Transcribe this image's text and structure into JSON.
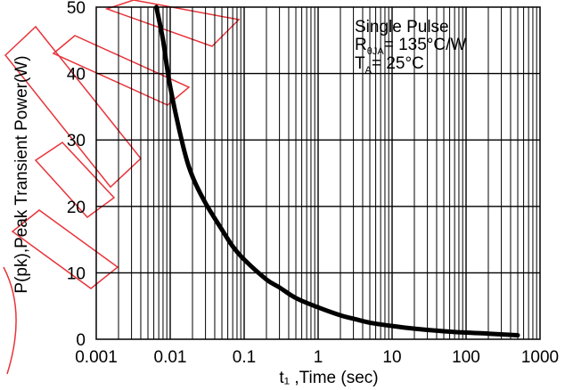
{
  "chart_data": {
    "type": "line",
    "x_scale": "log",
    "xlim": [
      0.001,
      1000
    ],
    "ylim": [
      0,
      50
    ],
    "grid": true,
    "xlabel": "t₁ ,Time (sec)",
    "ylabel": "P(pk),Peak Transient Power(W)",
    "x_tick_labels": [
      "0.001",
      "0.01",
      "0.1",
      "1",
      "10",
      "100",
      "1000"
    ],
    "y_tick_labels": [
      "0",
      "10",
      "20",
      "30",
      "40",
      "50"
    ],
    "annotations": {
      "line1": "Single Pulse",
      "line2_main": "R",
      "line2_sub": "θJA",
      "line2_rest": "= 135°C/W",
      "line3_main": "T",
      "line3_sub": "A",
      "line3_rest": "= 25°C"
    },
    "series": [
      {
        "color": "#000000",
        "x": [
          0.0065,
          0.008,
          0.01,
          0.015,
          0.02,
          0.03,
          0.05,
          0.07,
          0.1,
          0.2,
          0.3,
          0.5,
          1,
          2,
          3,
          5,
          10,
          20,
          50,
          100,
          200,
          500
        ],
        "y": [
          50,
          45,
          38,
          29,
          24.5,
          20.5,
          16.5,
          14,
          12,
          9,
          7.8,
          6.2,
          4.8,
          3.6,
          3.1,
          2.5,
          2.0,
          1.6,
          1.2,
          1.0,
          0.85,
          0.6
        ]
      }
    ]
  },
  "colors": {
    "curve": "#000000",
    "grid": "#000000",
    "watermark": "#e8343a"
  }
}
